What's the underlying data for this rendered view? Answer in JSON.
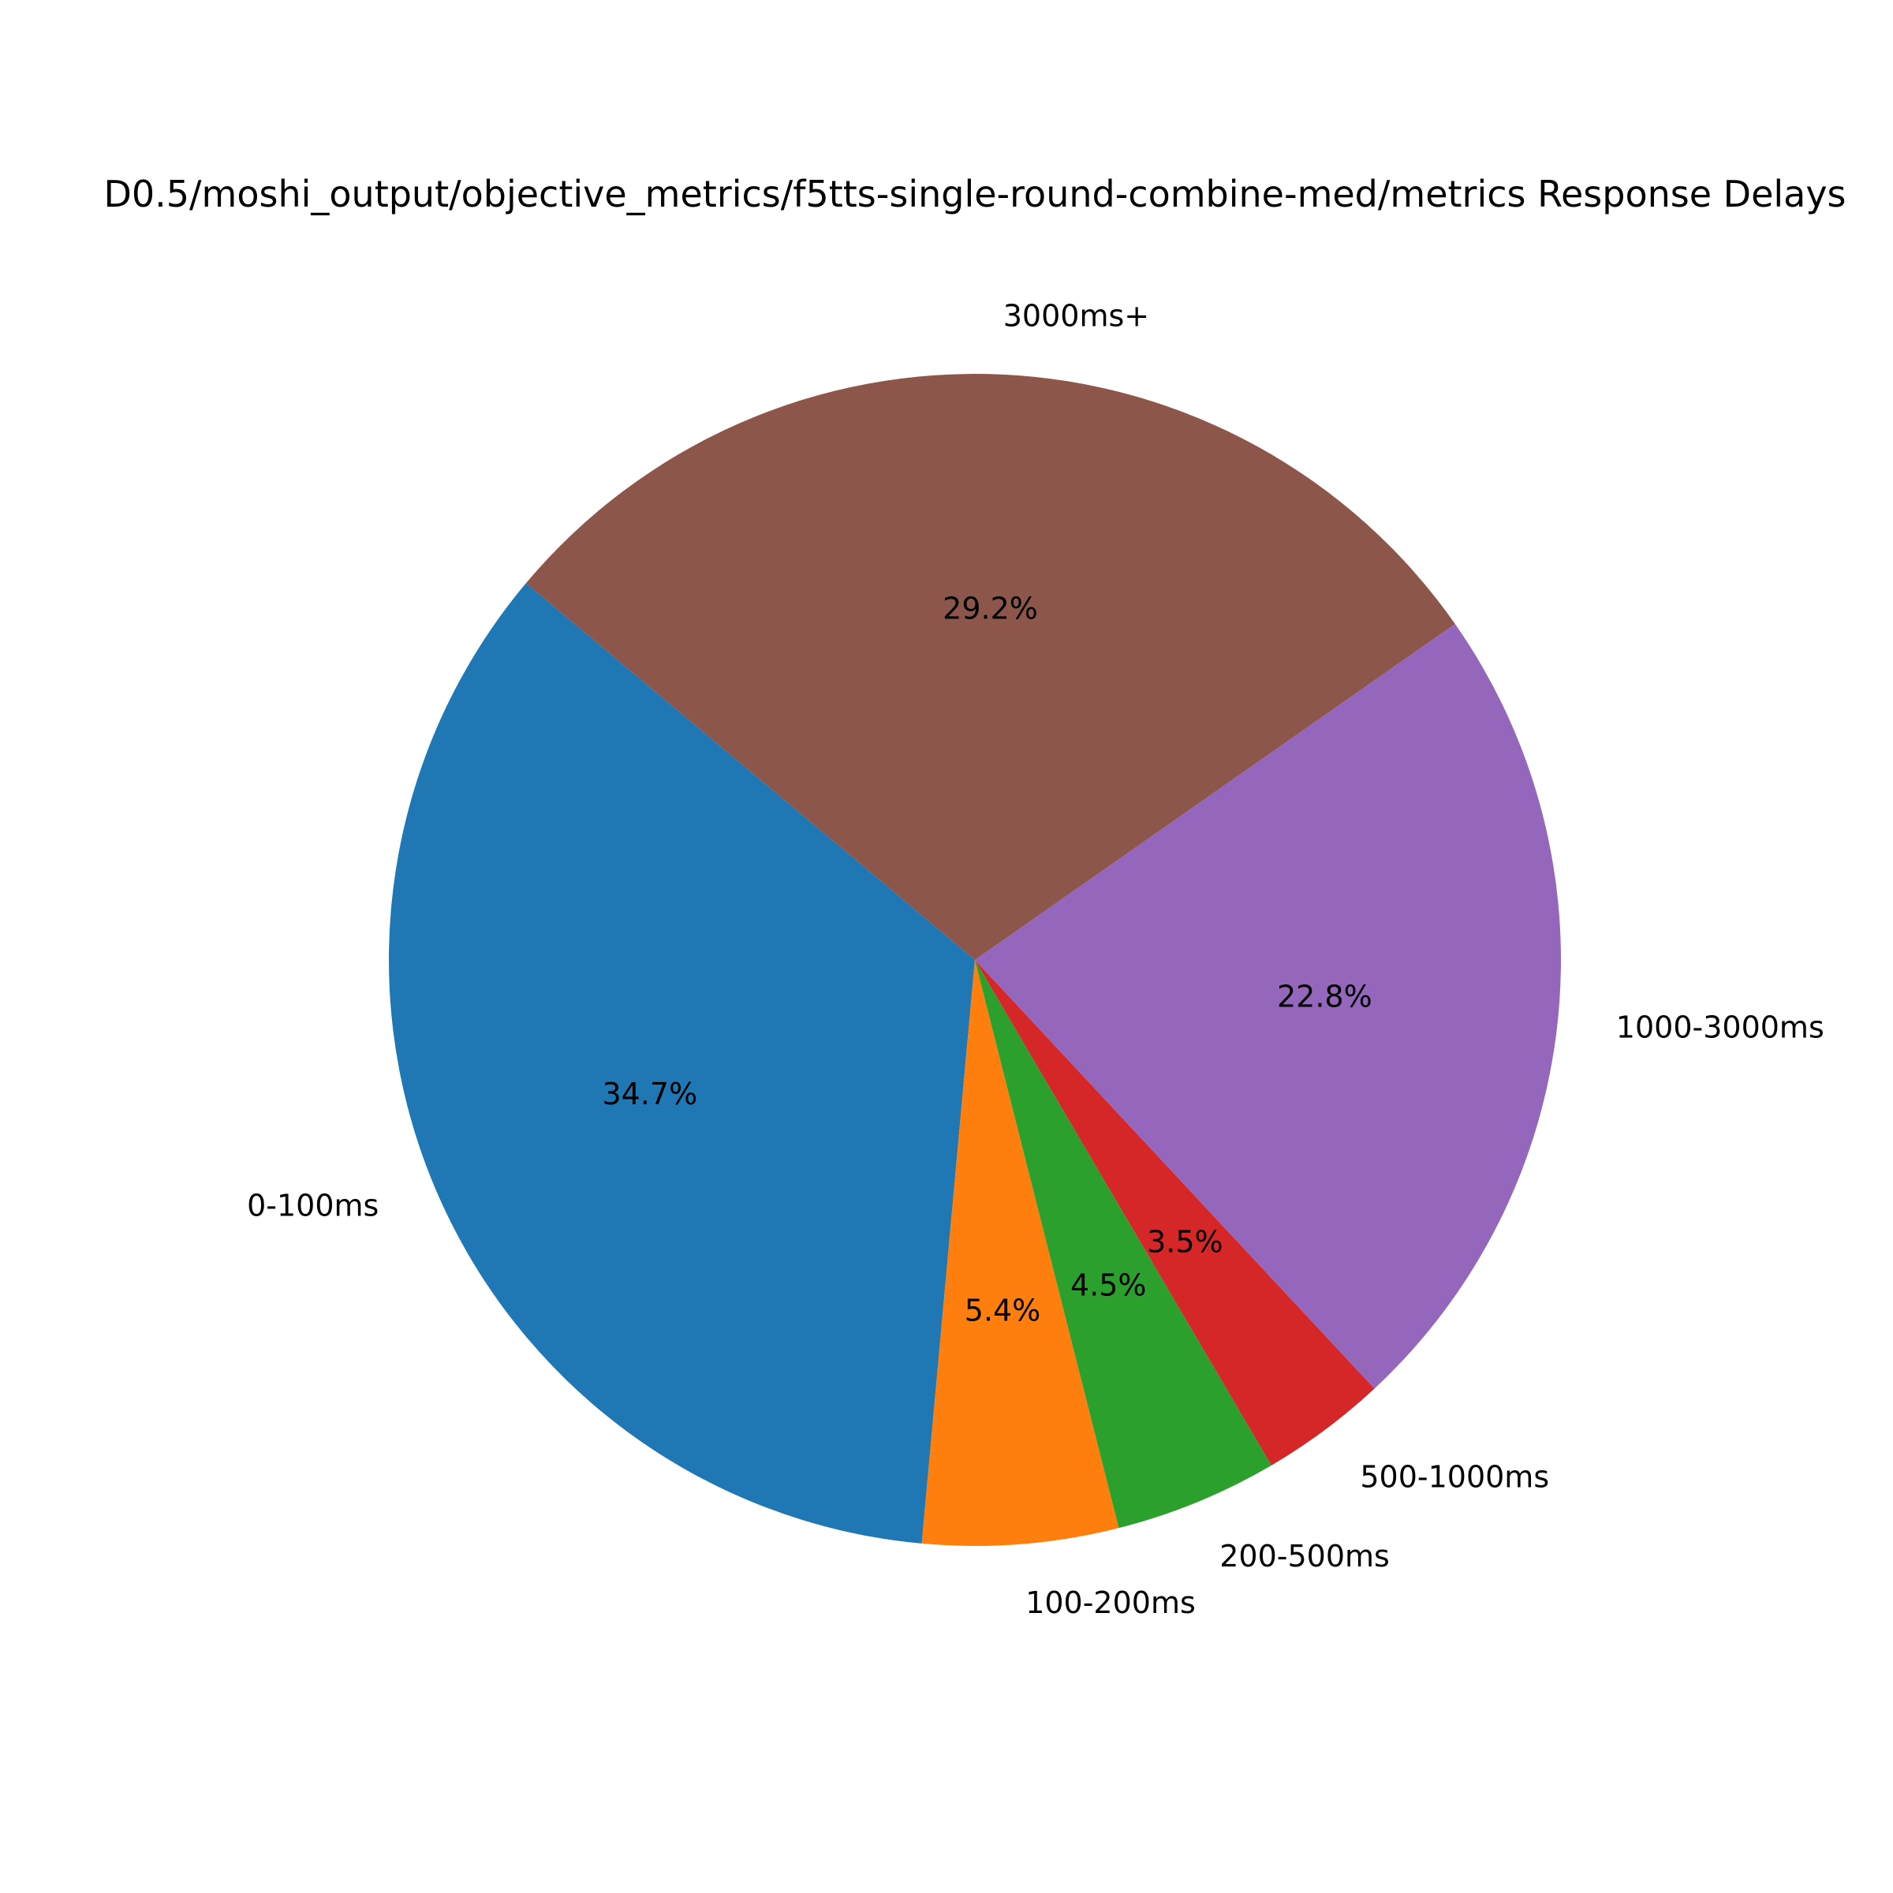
{
  "chart_data": {
    "type": "pie",
    "title": "D0.5/moshi_output/objective_metrics/f5tts-single-round-combine-med/metrics Response Delays",
    "start_angle_deg": 140,
    "counterclock": true,
    "slices": [
      {
        "label": "0-100ms",
        "value": 34.7,
        "pct_label": "34.7%",
        "color": "#1f77b4"
      },
      {
        "label": "100-200ms",
        "value": 5.4,
        "pct_label": "5.4%",
        "color": "#ff7f0e"
      },
      {
        "label": "200-500ms",
        "value": 4.5,
        "pct_label": "4.5%",
        "color": "#2ca02c"
      },
      {
        "label": "500-1000ms",
        "value": 3.5,
        "pct_label": "3.5%",
        "color": "#d62728"
      },
      {
        "label": "1000-3000ms",
        "value": 22.8,
        "pct_label": "22.8%",
        "color": "#9467bd"
      },
      {
        "label": "3000ms+",
        "value": 29.2,
        "pct_label": "29.2%",
        "color": "#8c564b"
      }
    ]
  }
}
